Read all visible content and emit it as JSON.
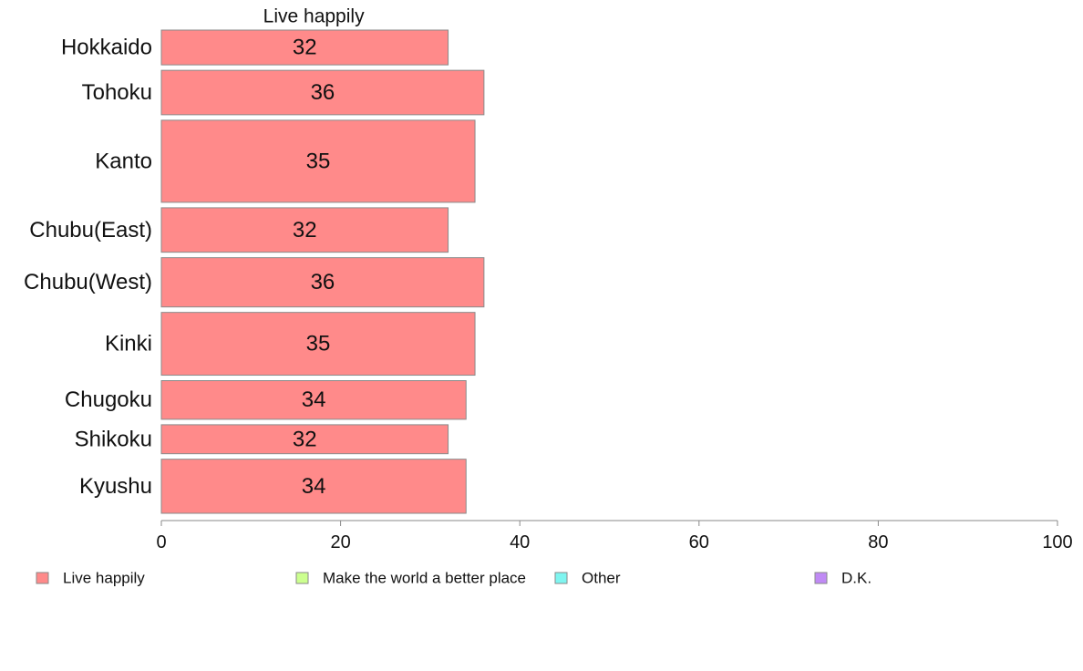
{
  "chart_data": {
    "type": "bar",
    "orientation": "horizontal",
    "stacked": true,
    "categories": [
      "Hokkaido",
      "Tohoku",
      "Kanto",
      "Chubu(East)",
      "Chubu(West)",
      "Kinki",
      "Chugoku",
      "Shikoku",
      "Kyushu"
    ],
    "category_weights": [
      36,
      46,
      85,
      46,
      51,
      65,
      40,
      30,
      56
    ],
    "series": [
      {
        "name": "Live happily",
        "color": "#ff8a8a",
        "values": [
          32,
          36,
          35,
          32,
          36,
          35,
          34,
          32,
          34
        ],
        "labels": [
          "32",
          "36",
          "35",
          "32",
          "36",
          "35",
          "34",
          "32",
          "34"
        ],
        "title": "Live happily"
      }
    ],
    "xlim": [
      0,
      100
    ],
    "xticks": [
      0,
      20,
      40,
      60,
      80,
      100
    ],
    "xtick_labels": [
      "0",
      "20",
      "40",
      "60",
      "80",
      "100"
    ],
    "grid": false,
    "legend_position": "bottom",
    "legend": [
      {
        "name": "Live happily",
        "color": "#ff8a8a"
      },
      {
        "name": "Make the world a better place",
        "color": "#ccff8f"
      },
      {
        "name": "Other",
        "color": "#7ff5f0"
      },
      {
        "name": "D.K.",
        "color": "#c08af5"
      }
    ]
  }
}
